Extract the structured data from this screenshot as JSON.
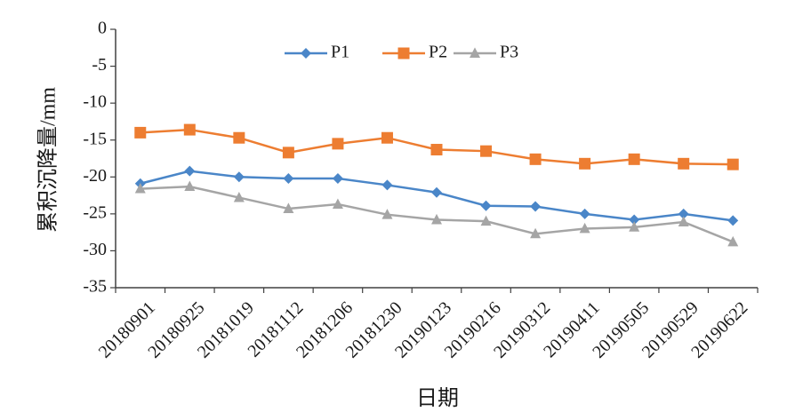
{
  "chart_data": {
    "type": "line",
    "title": "",
    "xlabel": "日期",
    "ylabel": "累积沉降量/mm",
    "ylim": [
      -35,
      0
    ],
    "yticks": [
      0,
      -5,
      -10,
      -15,
      -20,
      -25,
      -30,
      -35
    ],
    "ytick_labels": [
      "0",
      "-5",
      "-10",
      "-15",
      "-20",
      "-25",
      "-30",
      "-35"
    ],
    "grid": false,
    "legend_position": "top",
    "categories": [
      "20180901",
      "20180925",
      "20181019",
      "20181112",
      "20181206",
      "20181230",
      "20190123",
      "20190216",
      "20190312",
      "20190411",
      "20190505",
      "20190529",
      "20190622"
    ],
    "series": [
      {
        "name": "P1",
        "color": "#4a86c8",
        "marker": "diamond",
        "values": [
          -20.9,
          -19.2,
          -20.0,
          -20.2,
          -20.2,
          -21.1,
          -22.1,
          -23.9,
          -24.0,
          -25.0,
          -25.8,
          -25.0,
          -25.9
        ]
      },
      {
        "name": "P2",
        "color": "#ed7d31",
        "marker": "square",
        "values": [
          -14.0,
          -13.6,
          -14.7,
          -16.7,
          -15.5,
          -14.7,
          -16.3,
          -16.5,
          -17.6,
          -18.2,
          -17.6,
          -18.2,
          -18.3
        ]
      },
      {
        "name": "P3",
        "color": "#a5a5a5",
        "marker": "triangle",
        "values": [
          -21.6,
          -21.3,
          -22.8,
          -24.3,
          -23.7,
          -25.1,
          -25.8,
          -26.0,
          -27.7,
          -27.0,
          -26.8,
          -26.1,
          -28.8
        ]
      }
    ]
  }
}
